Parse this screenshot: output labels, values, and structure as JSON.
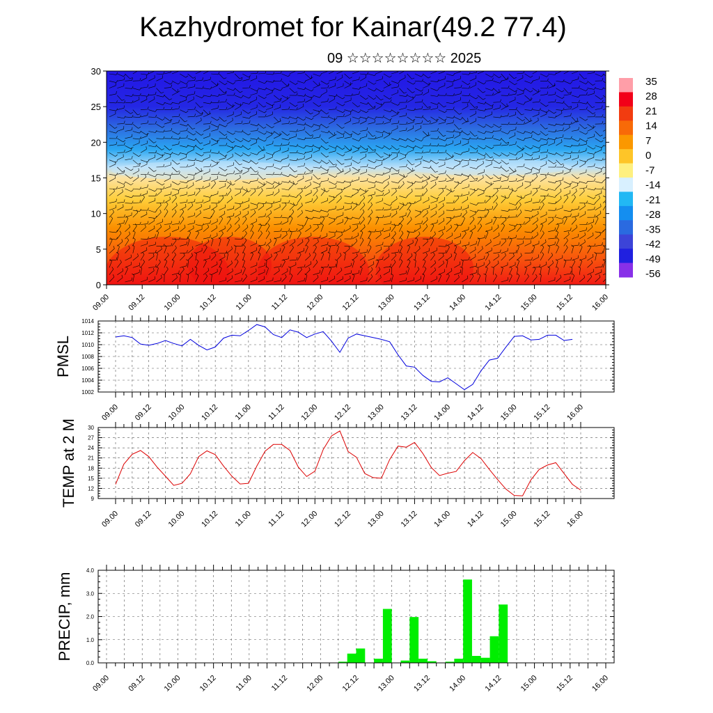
{
  "header": {
    "title": "Kazhydromet for Kainar(49.2 77.4)",
    "subtitle": "09 ☆☆☆☆☆☆☆☆ 2025"
  },
  "time_ticks": [
    "09.00",
    "09.12",
    "10.00",
    "10.12",
    "11.00",
    "11.12",
    "12.00",
    "12.12",
    "13.00",
    "13.12",
    "14.00",
    "14.12",
    "15.00",
    "15.12",
    "16.00"
  ],
  "colors": {
    "pmsl_line": "#0000dd",
    "temp_line": "#dd0000",
    "precip_bar": "#00ee00",
    "frame": "#000000",
    "grid": "#555555",
    "wind_barb": "#000000"
  },
  "chart_data": [
    {
      "type": "heatmap",
      "name": "vertical cross-section temperature with wind barbs",
      "title": "",
      "ylim": [
        0,
        30
      ],
      "yticks": [
        0,
        5,
        10,
        15,
        20,
        25,
        30
      ],
      "xlabels_ref": "time_ticks",
      "colorbar": {
        "labels": [
          "35",
          "28",
          "21",
          "14",
          "7",
          "0",
          "-7",
          "-14",
          "-21",
          "-28",
          "-35",
          "-42",
          "-49",
          "-56"
        ],
        "colors": [
          "#ff9ea8",
          "#f20018",
          "#f23c10",
          "#f86a08",
          "#fb9800",
          "#fec528",
          "#fef080",
          "#d8f0ff",
          "#22b8f4",
          "#148ef0",
          "#2a6ae0",
          "#3c44d8",
          "#2020e0",
          "#8830e8"
        ]
      },
      "profile_levels": [
        0,
        4,
        8,
        12,
        15,
        16.5,
        19,
        22,
        25,
        30
      ],
      "profile_colors": [
        "#f21a14",
        "#f85a0c",
        "#fb9000",
        "#fece3a",
        "#fde2a0",
        "#b9e0fa",
        "#2aa7f2",
        "#2d6be0",
        "#2427e4",
        "#2316e6"
      ],
      "wind_barbs": true
    },
    {
      "type": "line",
      "name": "PMSL",
      "ylabel": "PMSL",
      "ylim": [
        1002,
        1014
      ],
      "yticks": [
        1002,
        1004,
        1006,
        1008,
        1010,
        1012,
        1014
      ],
      "x_hours": [
        0,
        3,
        6,
        9,
        12,
        15,
        18,
        21,
        24,
        27,
        30,
        33,
        36,
        39,
        42,
        45,
        48,
        51,
        54,
        57,
        60,
        63,
        66,
        69,
        72,
        75,
        78,
        81,
        84,
        87,
        90,
        93,
        96,
        99,
        102,
        105,
        108,
        111,
        114,
        117,
        120,
        123,
        126,
        129,
        132,
        135,
        138,
        141,
        144,
        147,
        150,
        153,
        156,
        159,
        162,
        165,
        168
      ],
      "values": [
        1011.3,
        1011.5,
        1011.2,
        1010.1,
        1009.9,
        1010.2,
        1010.7,
        1010.2,
        1009.8,
        1010.9,
        1009.9,
        1009.1,
        1009.6,
        1011.1,
        1011.6,
        1011.5,
        1012.4,
        1013.4,
        1013.0,
        1011.7,
        1011.2,
        1012.5,
        1012.1,
        1011.2,
        1011.8,
        1012.2,
        1010.6,
        1008.7,
        1011.1,
        1011.8,
        1011.5,
        1011.2,
        1010.9,
        1010.5,
        1008.3,
        1006.4,
        1006.2,
        1004.8,
        1003.8,
        1003.7,
        1004.4,
        1003.4,
        1002.4,
        1003.3,
        1005.6,
        1007.4,
        1007.7,
        1009.6,
        1011.4,
        1011.5,
        1010.8,
        1010.9,
        1011.6,
        1011.6,
        1010.7,
        1010.9,
        null
      ]
    },
    {
      "type": "line",
      "name": "TEMP at 2 M",
      "ylabel": "TEMP at 2 M",
      "ylim": [
        9,
        30
      ],
      "yticks": [
        9,
        12,
        15,
        18,
        21,
        24,
        27,
        30
      ],
      "x_hours": [
        0,
        3,
        6,
        9,
        12,
        15,
        18,
        21,
        24,
        27,
        30,
        33,
        36,
        39,
        42,
        45,
        48,
        51,
        54,
        57,
        60,
        63,
        66,
        69,
        72,
        75,
        78,
        81,
        84,
        87,
        90,
        93,
        96,
        99,
        102,
        105,
        108,
        111,
        114,
        117,
        120,
        123,
        126,
        129,
        132,
        135,
        138,
        141,
        144,
        147,
        150,
        153,
        156,
        159,
        162,
        165,
        168
      ],
      "values": [
        13.2,
        19.2,
        22.1,
        23.2,
        21.4,
        18.3,
        15.6,
        12.9,
        13.5,
        16.3,
        21.4,
        23.1,
        22.0,
        18.6,
        15.6,
        13.3,
        13.5,
        18.6,
        23.0,
        25.0,
        25.0,
        23.2,
        18.3,
        15.5,
        17.1,
        23.5,
        27.5,
        29.0,
        22.9,
        21.2,
        16.4,
        15.2,
        15.0,
        20.5,
        24.5,
        24.2,
        25.6,
        22.3,
        18.2,
        15.8,
        16.5,
        17.0,
        20.2,
        22.6,
        20.8,
        17.6,
        14.6,
        11.8,
        9.9,
        9.8,
        14.5,
        17.6,
        18.9,
        19.6,
        16.4,
        13.2,
        11.5
      ]
    },
    {
      "type": "bar",
      "name": "PRECIP, mm",
      "ylabel": "PRECIP, mm",
      "ylim": [
        0,
        4.0
      ],
      "yticks": [
        "0.0",
        "1.0",
        "2.0",
        "3.0",
        "4.0"
      ],
      "bar_width_hours": 3,
      "bars": [
        {
          "start_hour": 78,
          "value": 0.05
        },
        {
          "start_hour": 81,
          "value": 0.4
        },
        {
          "start_hour": 84,
          "value": 0.62
        },
        {
          "start_hour": 90,
          "value": 0.18
        },
        {
          "start_hour": 93,
          "value": 2.33
        },
        {
          "start_hour": 99,
          "value": 0.1
        },
        {
          "start_hour": 102,
          "value": 1.98
        },
        {
          "start_hour": 105,
          "value": 0.18
        },
        {
          "start_hour": 108,
          "value": 0.07
        },
        {
          "start_hour": 114,
          "value": 0.05
        },
        {
          "start_hour": 117,
          "value": 0.18
        },
        {
          "start_hour": 120,
          "value": 3.6
        },
        {
          "start_hour": 123,
          "value": 0.3
        },
        {
          "start_hour": 126,
          "value": 0.22
        },
        {
          "start_hour": 129,
          "value": 1.15
        },
        {
          "start_hour": 132,
          "value": 2.52
        }
      ]
    }
  ]
}
